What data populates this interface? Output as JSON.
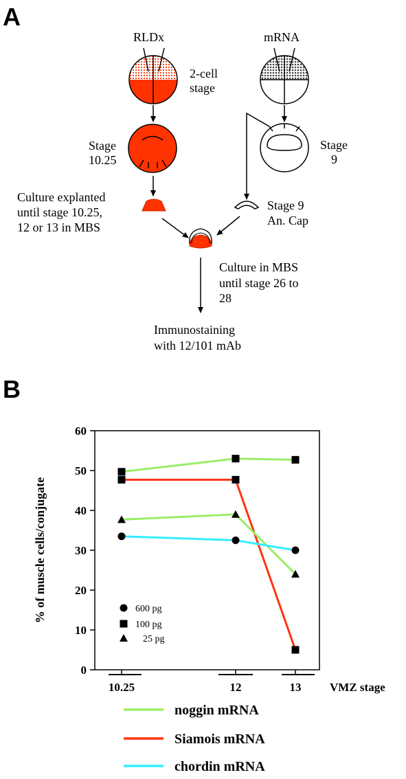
{
  "panel_a": {
    "letter": "A",
    "inject_left": "RLDx",
    "inject_right": "mRNA",
    "two_cell_l1": "2-cell",
    "two_cell_l2": "stage",
    "stage1025_l1": "Stage",
    "stage1025_l2": "10.25",
    "stage9_l1": "Stage",
    "stage9_l2": "9",
    "culture_explant_l1": "Culture explanted",
    "culture_explant_l2": "until stage 10.25,",
    "culture_explant_l3": "12 or 13 in MBS",
    "ancap_l1": "Stage 9",
    "ancap_l2": "An. Cap",
    "culture_mbs_l1": "Culture in MBS",
    "culture_mbs_l2": "until stage 26 to",
    "culture_mbs_l3": "28",
    "immuno_l1": "Immunostaining",
    "immuno_l2": "with 12/101 mAb"
  },
  "panel_b": {
    "letter": "B"
  },
  "colors": {
    "embryo_red": "#ff3300",
    "noggin": "#99ee66",
    "siamois": "#ff3311",
    "chordin": "#33eeff"
  },
  "chart_data": {
    "type": "line",
    "ylabel": "% of muscle cells/conjugate",
    "xlabel": "VMZ stage",
    "categories": [
      "10.25",
      "12",
      "13"
    ],
    "ylim": [
      0,
      60
    ],
    "yticks": [
      0,
      10,
      20,
      30,
      40,
      50,
      60
    ],
    "grid": false,
    "series": [
      {
        "name": "noggin mRNA",
        "dose": "100 pg",
        "marker": "square",
        "color": "#99ee66",
        "values": [
          49.7,
          53,
          52.7
        ]
      },
      {
        "name": "Siamois mRNA",
        "dose": "100 pg",
        "marker": "square",
        "color": "#ff3311",
        "values": [
          47.7,
          47.7,
          5
        ]
      },
      {
        "name": "noggin mRNA",
        "dose": "25 pg",
        "marker": "triangle",
        "color": "#99ee66",
        "values": [
          37.7,
          39,
          24
        ]
      },
      {
        "name": "chordin mRNA",
        "dose": "600 pg",
        "marker": "circle",
        "color": "#33eeff",
        "values": [
          33.5,
          32.5,
          30
        ]
      }
    ],
    "marker_legend": [
      {
        "marker": "circle",
        "label": "600 pg"
      },
      {
        "marker": "square",
        "label": "100 pg"
      },
      {
        "marker": "triangle",
        "label": "25 pg"
      }
    ],
    "color_legend": [
      {
        "label": "noggin mRNA",
        "color": "#99ee66"
      },
      {
        "label": "Siamois mRNA",
        "color": "#ff3311"
      },
      {
        "label": "chordin mRNA",
        "color": "#33eeff"
      }
    ]
  }
}
